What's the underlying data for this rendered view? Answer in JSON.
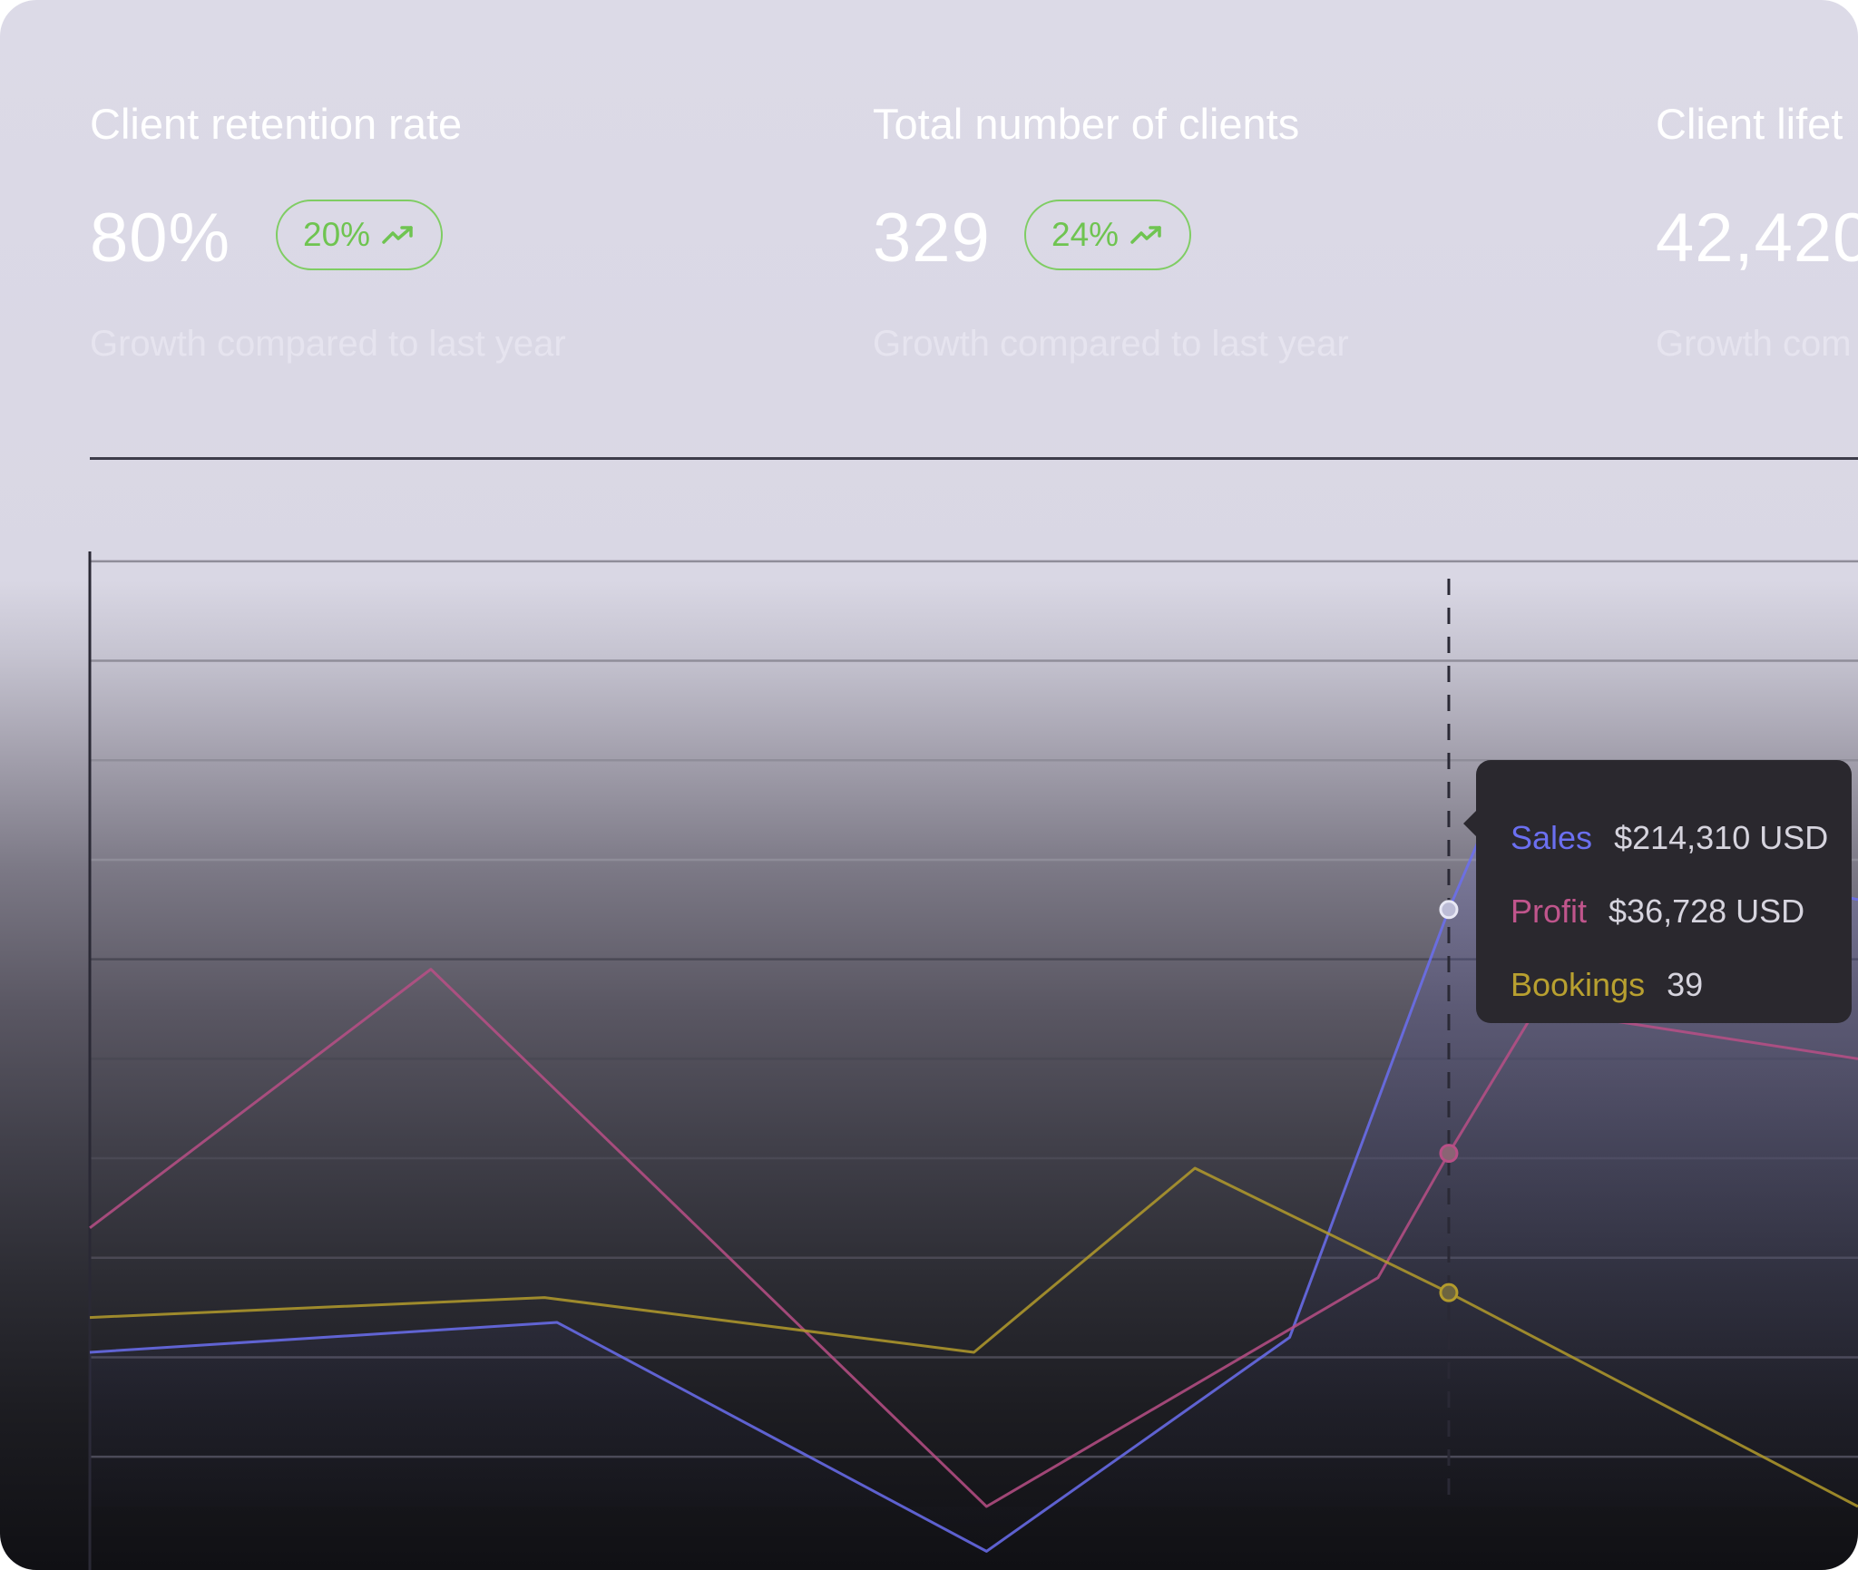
{
  "stats": [
    {
      "title": "Client retention rate",
      "value": "80%",
      "badge": "20%",
      "subtitle": "Growth compared to last year",
      "trend_icon": "trending-up-icon"
    },
    {
      "title": "Total number of clients",
      "value": "329",
      "badge": "24%",
      "subtitle": "Growth compared to last year",
      "trend_icon": "trending-up-icon"
    },
    {
      "title": "Client lifet",
      "value": "42,420",
      "subtitle": "Growth com"
    }
  ],
  "colors": {
    "sales": "#6b6ff0",
    "profit": "#b84f86",
    "bookings": "#b39b2c",
    "badge_green": "#6fc451"
  },
  "tooltip": {
    "rows": [
      {
        "label": "Sales",
        "value": "$214,310 USD"
      },
      {
        "label": "Profit",
        "value": "$36,728 USD"
      },
      {
        "label": "Bookings",
        "value": "39"
      }
    ]
  },
  "chart_data": {
    "type": "line",
    "grid": true,
    "hover_x": 10.76,
    "xlim": [
      0,
      14
    ],
    "ylim": [
      0,
      10
    ],
    "series": [
      {
        "name": "Sales",
        "x": [
          0,
          3.7,
          7.1,
          9.5,
          10.76,
          11.1,
          13.6,
          14.0
        ],
        "y": [
          1.55,
          1.85,
          -0.45,
          1.7,
          6.0,
          7.0,
          6.2,
          6.1
        ]
      },
      {
        "name": "Profit",
        "x": [
          0,
          2.7,
          7.1,
          10.2,
          10.76,
          11.45,
          14.0
        ],
        "y": [
          2.8,
          5.4,
          0.0,
          2.3,
          3.55,
          5.0,
          4.5
        ]
      },
      {
        "name": "Bookings",
        "x": [
          0,
          3.6,
          7.0,
          8.75,
          10.76,
          14.0
        ],
        "y": [
          1.9,
          2.1,
          1.55,
          3.4,
          2.15,
          0.0
        ]
      }
    ]
  }
}
